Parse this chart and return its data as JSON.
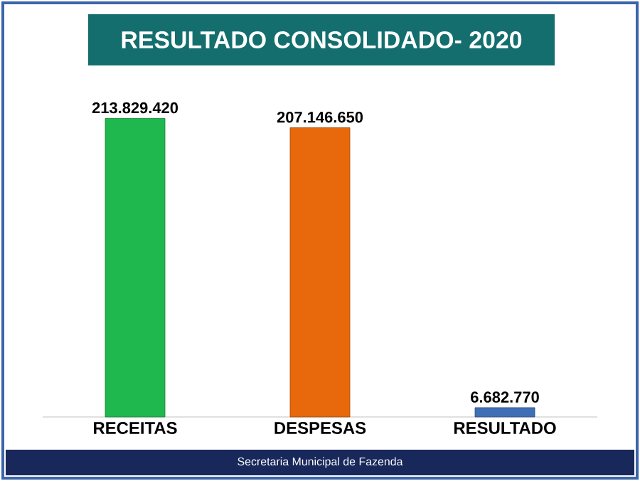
{
  "chart_data": {
    "type": "bar",
    "title": "RESULTADO CONSOLIDADO- 2020",
    "categories": [
      "RECEITAS",
      "DESPESAS",
      "RESULTADO"
    ],
    "values": [
      213829420,
      207146650,
      6682770
    ],
    "colors": [
      "#1fb84e",
      "#e8680c",
      "#3f6fb5"
    ],
    "value_labels": [
      "213.829.420",
      "207.146.650",
      "6.682.770"
    ],
    "annotations": [
      "Secretaria Municipal de Fazenda"
    ]
  }
}
